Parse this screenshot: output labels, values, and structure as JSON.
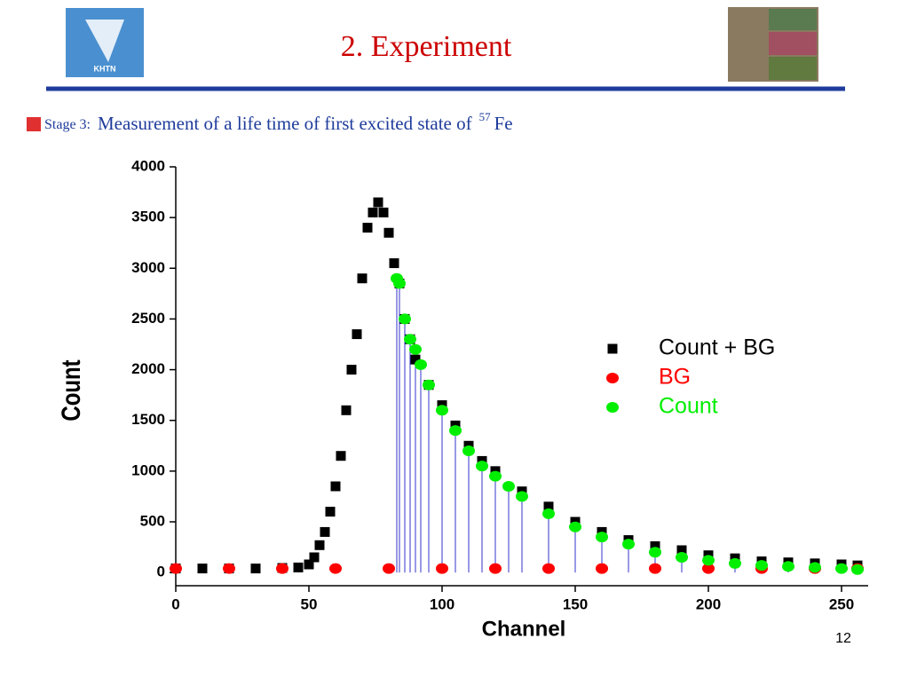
{
  "slide": {
    "title": "2. Experiment",
    "bullet_label": "Stage 3:",
    "bullet_text": "Measurement of a life time of first excited state of",
    "superscript": "57",
    "element": "Fe",
    "logo_text": "KHTN",
    "page_number": "12"
  },
  "chart_data": {
    "type": "scatter",
    "x_label": "Channel",
    "y_label": "Count",
    "xlim": [
      0,
      260
    ],
    "xticks": [
      0,
      50,
      100,
      150,
      200,
      250
    ],
    "ylim": [
      -130,
      4000
    ],
    "yticks": [
      0,
      500,
      1000,
      1500,
      2000,
      2500,
      3000,
      3500,
      4000
    ],
    "legend": "right",
    "series": [
      {
        "name": "Count + BG",
        "color": "#000000",
        "marker": "square",
        "x": [
          0,
          10,
          20,
          30,
          40,
          46,
          50,
          52,
          54,
          56,
          58,
          60,
          62,
          64,
          66,
          68,
          70,
          72,
          74,
          76,
          78,
          80,
          82,
          84,
          86,
          88,
          90,
          95,
          100,
          105,
          110,
          115,
          120,
          130,
          140,
          150,
          160,
          170,
          180,
          190,
          200,
          210,
          220,
          230,
          240,
          250,
          256
        ],
        "values": [
          40,
          40,
          40,
          40,
          45,
          50,
          80,
          150,
          270,
          400,
          600,
          850,
          1150,
          1600,
          2000,
          2350,
          2900,
          3400,
          3550,
          3650,
          3550,
          3350,
          3050,
          2850,
          2500,
          2300,
          2100,
          1850,
          1650,
          1450,
          1250,
          1100,
          1000,
          800,
          650,
          500,
          400,
          320,
          260,
          220,
          170,
          140,
          110,
          100,
          90,
          80,
          70
        ]
      },
      {
        "name": "BG",
        "color": "#ff0000",
        "marker": "circle",
        "stems": "#ff3333",
        "x": [
          0,
          20,
          40,
          60,
          80,
          100,
          120,
          140,
          160,
          180,
          200,
          220,
          240,
          256
        ],
        "values": [
          40,
          40,
          40,
          40,
          40,
          40,
          40,
          40,
          40,
          40,
          40,
          40,
          40,
          40
        ]
      },
      {
        "name": "Count",
        "color": "#00ee00",
        "marker": "circle",
        "stems": "#3333cc",
        "x": [
          83,
          84,
          86,
          88,
          90,
          92,
          95,
          100,
          105,
          110,
          115,
          120,
          125,
          130,
          140,
          150,
          160,
          170,
          180,
          190,
          200,
          210,
          220,
          230,
          240,
          250,
          256
        ],
        "values": [
          2900,
          2850,
          2500,
          2300,
          2200,
          2050,
          1850,
          1600,
          1400,
          1200,
          1050,
          950,
          850,
          750,
          580,
          450,
          350,
          280,
          200,
          150,
          120,
          90,
          70,
          60,
          50,
          40,
          30
        ]
      }
    ]
  }
}
